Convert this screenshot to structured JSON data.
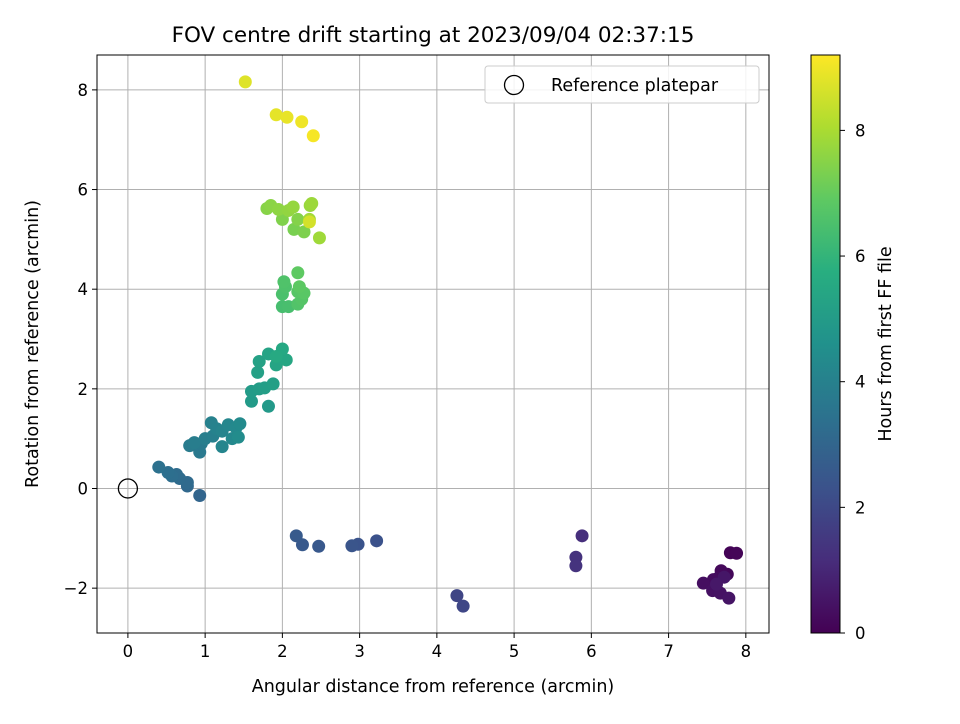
{
  "chart_data": {
    "type": "scatter",
    "title": "FOV centre drift starting at 2023/09/04 02:37:15",
    "xlabel": "Angular distance from reference (arcmin)",
    "ylabel": "Rotation from reference (arcmin)",
    "xlim": [
      -0.4,
      8.3
    ],
    "ylim": [
      -2.9,
      8.7
    ],
    "xticks": [
      0,
      1,
      2,
      3,
      4,
      5,
      6,
      7,
      8
    ],
    "yticks": [
      -2,
      0,
      2,
      4,
      6,
      8
    ],
    "grid": true,
    "legend": {
      "position": "top-right",
      "entries": [
        "Reference platepar"
      ]
    },
    "reference_point": {
      "x": 0,
      "y": 0
    },
    "colorbar": {
      "label": "Hours from first FF file",
      "range": [
        0,
        9.2
      ],
      "ticks": [
        0,
        2,
        4,
        6,
        8
      ],
      "colormap": "viridis"
    },
    "points": [
      {
        "x": 7.8,
        "y": -1.29,
        "t": 0.05
      },
      {
        "x": 7.88,
        "y": -1.3,
        "t": 0.1
      },
      {
        "x": 7.76,
        "y": -1.72,
        "t": 0.15
      },
      {
        "x": 7.68,
        "y": -1.65,
        "t": 0.2
      },
      {
        "x": 7.64,
        "y": -1.8,
        "t": 0.25
      },
      {
        "x": 7.58,
        "y": -1.83,
        "t": 0.3
      },
      {
        "x": 7.45,
        "y": -1.9,
        "t": 0.35
      },
      {
        "x": 7.57,
        "y": -2.05,
        "t": 0.4
      },
      {
        "x": 7.67,
        "y": -2.1,
        "t": 0.45
      },
      {
        "x": 7.78,
        "y": -2.2,
        "t": 0.5
      },
      {
        "x": 7.72,
        "y": -1.78,
        "t": 0.55
      },
      {
        "x": 7.62,
        "y": -1.92,
        "t": 0.6
      },
      {
        "x": 5.88,
        "y": -0.95,
        "t": 1.2
      },
      {
        "x": 5.8,
        "y": -1.38,
        "t": 1.3
      },
      {
        "x": 5.8,
        "y": -1.55,
        "t": 1.35
      },
      {
        "x": 4.26,
        "y": -2.15,
        "t": 1.9
      },
      {
        "x": 4.34,
        "y": -2.36,
        "t": 1.95
      },
      {
        "x": 3.22,
        "y": -1.05,
        "t": 2.3
      },
      {
        "x": 2.98,
        "y": -1.12,
        "t": 2.35
      },
      {
        "x": 2.9,
        "y": -1.15,
        "t": 2.4
      },
      {
        "x": 2.47,
        "y": -1.16,
        "t": 2.5
      },
      {
        "x": 2.26,
        "y": -1.13,
        "t": 2.55
      },
      {
        "x": 2.18,
        "y": -0.95,
        "t": 2.6
      },
      {
        "x": 0.93,
        "y": -0.14,
        "t": 3.0
      },
      {
        "x": 0.77,
        "y": 0.05,
        "t": 3.1
      },
      {
        "x": 0.77,
        "y": 0.12,
        "t": 3.15
      },
      {
        "x": 0.67,
        "y": 0.2,
        "t": 3.2
      },
      {
        "x": 0.63,
        "y": 0.28,
        "t": 3.25
      },
      {
        "x": 0.57,
        "y": 0.25,
        "t": 3.3
      },
      {
        "x": 0.52,
        "y": 0.32,
        "t": 3.35
      },
      {
        "x": 0.4,
        "y": 0.43,
        "t": 3.4
      },
      {
        "x": 0.93,
        "y": 0.73,
        "t": 3.7
      },
      {
        "x": 0.95,
        "y": 0.9,
        "t": 3.75
      },
      {
        "x": 0.8,
        "y": 0.86,
        "t": 3.8
      },
      {
        "x": 0.86,
        "y": 0.92,
        "t": 3.85
      },
      {
        "x": 1.0,
        "y": 1.0,
        "t": 3.9
      },
      {
        "x": 1.1,
        "y": 1.05,
        "t": 3.95
      },
      {
        "x": 1.08,
        "y": 1.32,
        "t": 4.0
      },
      {
        "x": 1.15,
        "y": 1.2,
        "t": 4.05
      },
      {
        "x": 1.22,
        "y": 1.15,
        "t": 4.1
      },
      {
        "x": 1.22,
        "y": 0.84,
        "t": 4.15
      },
      {
        "x": 1.3,
        "y": 1.28,
        "t": 4.2
      },
      {
        "x": 1.35,
        "y": 1.0,
        "t": 4.25
      },
      {
        "x": 1.4,
        "y": 1.22,
        "t": 4.3
      },
      {
        "x": 1.45,
        "y": 1.3,
        "t": 4.35
      },
      {
        "x": 1.43,
        "y": 1.03,
        "t": 4.4
      },
      {
        "x": 1.82,
        "y": 1.65,
        "t": 4.9
      },
      {
        "x": 1.6,
        "y": 1.75,
        "t": 4.95
      },
      {
        "x": 1.6,
        "y": 1.95,
        "t": 5.0
      },
      {
        "x": 1.7,
        "y": 2.0,
        "t": 5.05
      },
      {
        "x": 1.77,
        "y": 2.02,
        "t": 5.1
      },
      {
        "x": 1.88,
        "y": 2.1,
        "t": 5.15
      },
      {
        "x": 1.68,
        "y": 2.33,
        "t": 5.2
      },
      {
        "x": 1.7,
        "y": 2.55,
        "t": 5.25
      },
      {
        "x": 1.82,
        "y": 2.7,
        "t": 5.3
      },
      {
        "x": 1.92,
        "y": 2.48,
        "t": 5.35
      },
      {
        "x": 1.98,
        "y": 2.62,
        "t": 5.4
      },
      {
        "x": 2.05,
        "y": 2.58,
        "t": 5.45
      },
      {
        "x": 2.0,
        "y": 2.8,
        "t": 5.5
      },
      {
        "x": 1.92,
        "y": 2.65,
        "t": 5.55
      },
      {
        "x": 2.0,
        "y": 3.65,
        "t": 6.4
      },
      {
        "x": 2.08,
        "y": 3.65,
        "t": 6.45
      },
      {
        "x": 2.0,
        "y": 3.9,
        "t": 6.5
      },
      {
        "x": 2.04,
        "y": 4.05,
        "t": 6.55
      },
      {
        "x": 2.02,
        "y": 4.15,
        "t": 6.6
      },
      {
        "x": 2.2,
        "y": 3.7,
        "t": 6.65
      },
      {
        "x": 2.25,
        "y": 3.8,
        "t": 6.7
      },
      {
        "x": 2.2,
        "y": 3.95,
        "t": 6.75
      },
      {
        "x": 2.28,
        "y": 3.92,
        "t": 6.8
      },
      {
        "x": 2.22,
        "y": 4.05,
        "t": 6.85
      },
      {
        "x": 2.2,
        "y": 4.33,
        "t": 6.9
      },
      {
        "x": 2.15,
        "y": 5.2,
        "t": 7.3
      },
      {
        "x": 2.28,
        "y": 5.15,
        "t": 7.35
      },
      {
        "x": 2.0,
        "y": 5.4,
        "t": 7.4
      },
      {
        "x": 2.2,
        "y": 5.4,
        "t": 7.45
      },
      {
        "x": 1.8,
        "y": 5.62,
        "t": 7.5
      },
      {
        "x": 1.85,
        "y": 5.68,
        "t": 7.55
      },
      {
        "x": 1.95,
        "y": 5.6,
        "t": 7.6
      },
      {
        "x": 2.08,
        "y": 5.58,
        "t": 7.65
      },
      {
        "x": 2.14,
        "y": 5.65,
        "t": 7.7
      },
      {
        "x": 2.36,
        "y": 5.68,
        "t": 7.75
      },
      {
        "x": 2.38,
        "y": 5.72,
        "t": 7.8
      },
      {
        "x": 2.35,
        "y": 5.4,
        "t": 7.9
      },
      {
        "x": 2.48,
        "y": 5.03,
        "t": 7.85
      },
      {
        "x": 2.35,
        "y": 5.35,
        "t": 8.6
      },
      {
        "x": 1.52,
        "y": 8.16,
        "t": 8.75
      },
      {
        "x": 1.92,
        "y": 7.5,
        "t": 8.85
      },
      {
        "x": 2.06,
        "y": 7.45,
        "t": 8.9
      },
      {
        "x": 2.25,
        "y": 7.36,
        "t": 9.0
      },
      {
        "x": 2.4,
        "y": 7.08,
        "t": 9.1
      }
    ]
  }
}
